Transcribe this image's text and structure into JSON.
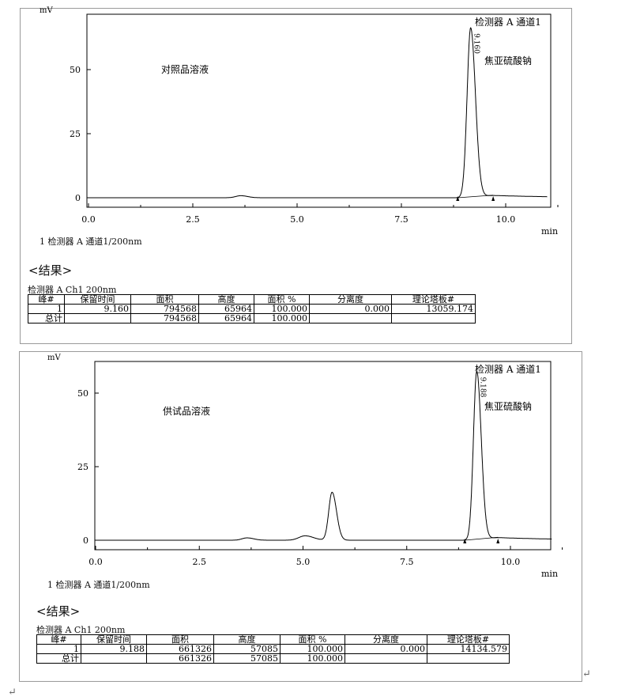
{
  "chromatograms": [
    {
      "annotation": "对照品溶液",
      "peak_name": "焦亚硫酸钠",
      "detector_label": "检测器 A 通道1",
      "peak_rt_label": "9.160",
      "legend": "1 检测器 A 通道1/200nm",
      "results_title": "<结果>",
      "table_caption": "检测器 A Ch1 200nm",
      "headers": [
        "峰#",
        "保留时间",
        "面积",
        "高度",
        "面积 %",
        "分离度",
        "理论塔板#"
      ],
      "rows": [
        [
          "1",
          "9.160",
          "794568",
          "65964",
          "100.000",
          "0.000",
          "13059.174"
        ],
        [
          "总计",
          "",
          "794568",
          "65964",
          "100.000",
          "",
          ""
        ]
      ]
    },
    {
      "annotation": "供试品溶液",
      "peak_name": "焦亚硫酸钠",
      "detector_label": "检测器 A 通道1",
      "peak_rt_label": "9.188",
      "legend": "1 检测器 A 通道1/200nm",
      "results_title": "<结果>",
      "table_caption": "检测器 A Ch1 200nm",
      "headers": [
        "峰#",
        "保留时间",
        "面积",
        "高度",
        "面积 %",
        "分离度",
        "理论塔板#"
      ],
      "rows": [
        [
          "1",
          "9.188",
          "661326",
          "57085",
          "100.000",
          "0.000",
          "14134.579"
        ],
        [
          "总计",
          "",
          "661326",
          "57085",
          "100.000",
          "",
          ""
        ]
      ]
    }
  ],
  "chart_data": [
    {
      "type": "line",
      "ylabel": "mV",
      "xlabel": "min",
      "xlim": [
        0,
        11.0
      ],
      "ylim": [
        -3.5,
        71.5
      ],
      "xticks": [
        "0.0",
        "2.5",
        "5.0",
        "7.5",
        "10.0"
      ],
      "yticks": [
        "0",
        "25",
        "50"
      ],
      "peaks": [
        {
          "rt": 3.65,
          "height": 0.8,
          "width": 0.12
        },
        {
          "rt": 9.16,
          "height": 66.0,
          "width": 0.085
        }
      ],
      "integration_marks": [
        8.85,
        9.7
      ],
      "line_color": "#000000"
    },
    {
      "type": "line",
      "ylabel": "mV",
      "xlabel": "min",
      "xlim": [
        0,
        11.0
      ],
      "ylim": [
        -3.2,
        60.7
      ],
      "xticks": [
        "0.0",
        "2.5",
        "5.0",
        "7.5",
        "10.0"
      ],
      "yticks": [
        "0",
        "25",
        "50"
      ],
      "peaks": [
        {
          "rt": 3.65,
          "height": 0.8,
          "width": 0.12
        },
        {
          "rt": 5.05,
          "height": 1.5,
          "width": 0.15
        },
        {
          "rt": 5.7,
          "height": 16.3,
          "width": 0.08
        },
        {
          "rt": 9.188,
          "height": 57.1,
          "width": 0.08
        }
      ],
      "integration_marks": [
        8.9,
        9.7
      ],
      "line_color": "#000000"
    }
  ]
}
